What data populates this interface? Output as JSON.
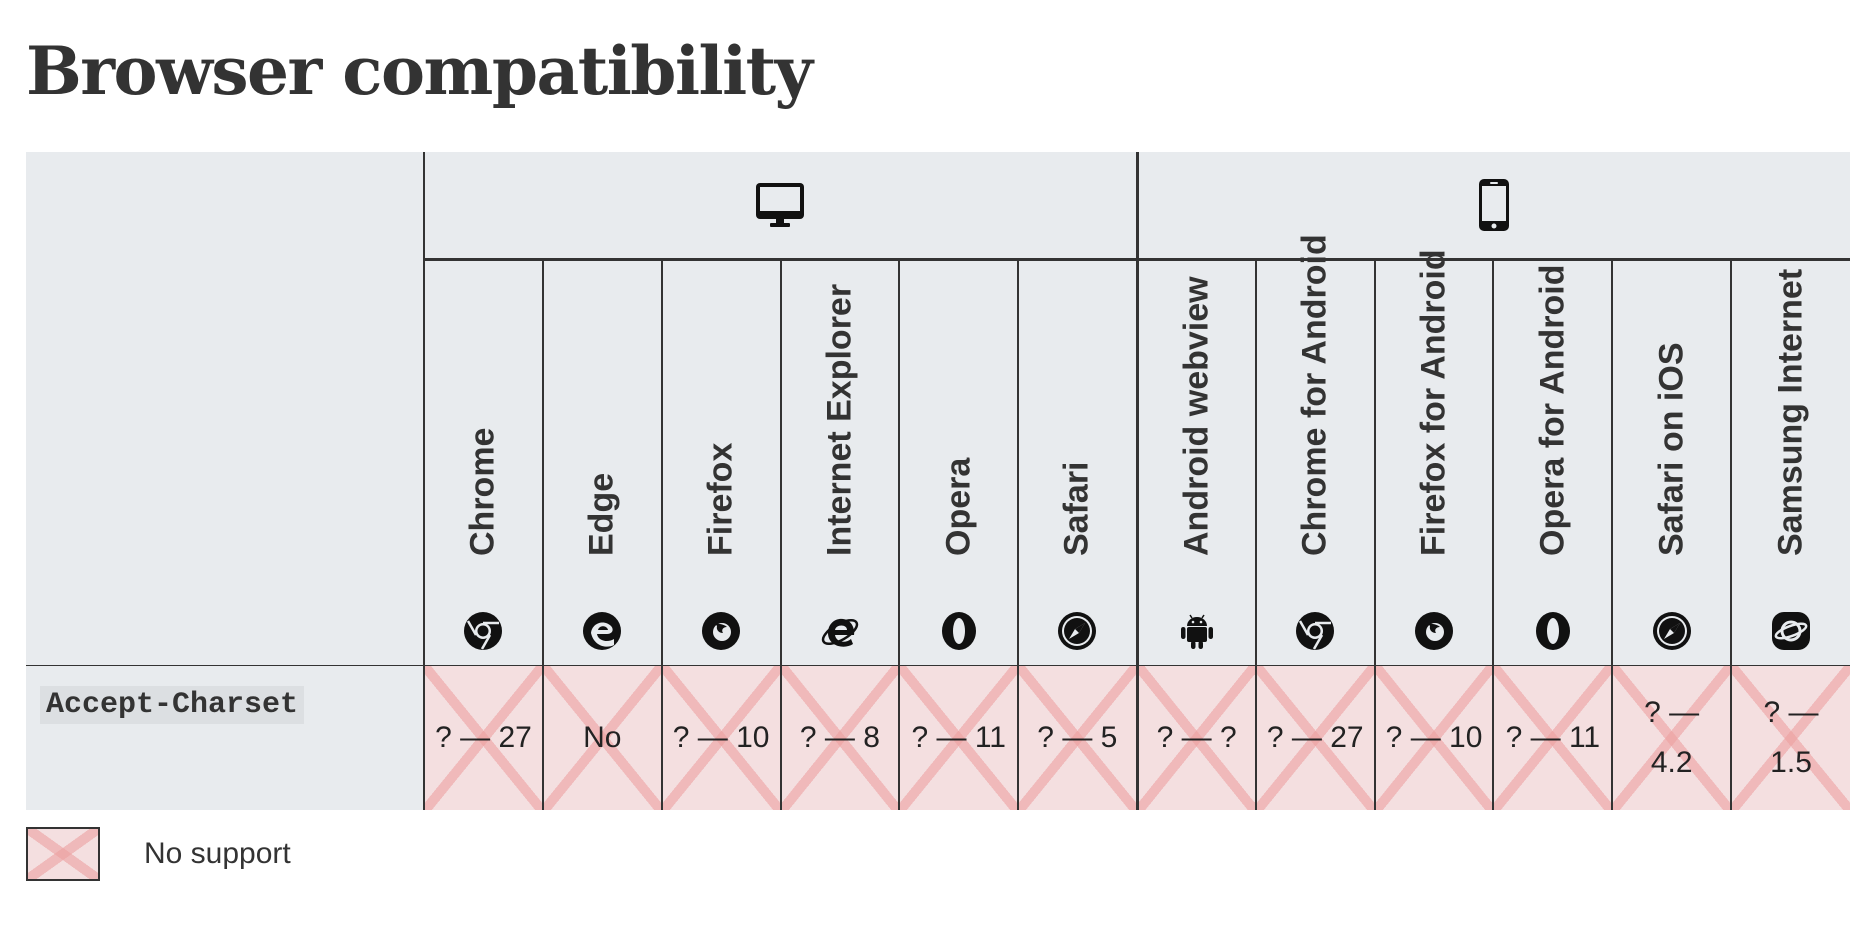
{
  "page": {
    "title": "Browser compatibility"
  },
  "platforms": {
    "desktop_icon": "desktop-monitor-icon",
    "mobile_icon": "mobile-phone-icon"
  },
  "browsers": [
    {
      "name": "Chrome",
      "icon": "chrome-icon"
    },
    {
      "name": "Edge",
      "icon": "edge-icon"
    },
    {
      "name": "Firefox",
      "icon": "firefox-icon"
    },
    {
      "name": "Internet Explorer",
      "icon": "internet-explorer-icon"
    },
    {
      "name": "Opera",
      "icon": "opera-icon"
    },
    {
      "name": "Safari",
      "icon": "safari-icon"
    },
    {
      "name": "Android webview",
      "icon": "android-icon"
    },
    {
      "name": "Chrome for Android",
      "icon": "chrome-icon"
    },
    {
      "name": "Firefox for Android",
      "icon": "firefox-icon"
    },
    {
      "name": "Opera for Android",
      "icon": "opera-icon"
    },
    {
      "name": "Safari on iOS",
      "icon": "safari-icon"
    },
    {
      "name": "Samsung Internet",
      "icon": "samsung-internet-icon"
    }
  ],
  "feature": {
    "name": "Accept-Charset",
    "support": [
      "? — 27",
      "No",
      "? — 10",
      "? — 8",
      "? — 11",
      "? — 5",
      "? — ?",
      "? — 27",
      "? — 10",
      "? — 11",
      "? — 4.2",
      "? — 1.5"
    ]
  },
  "legend": {
    "no_support": "No support"
  },
  "colors": {
    "no_support_bg": "#f4dfe0",
    "no_support_cross": "#eca0a0",
    "header_bg": "#e8ebee",
    "text": "#333333"
  }
}
